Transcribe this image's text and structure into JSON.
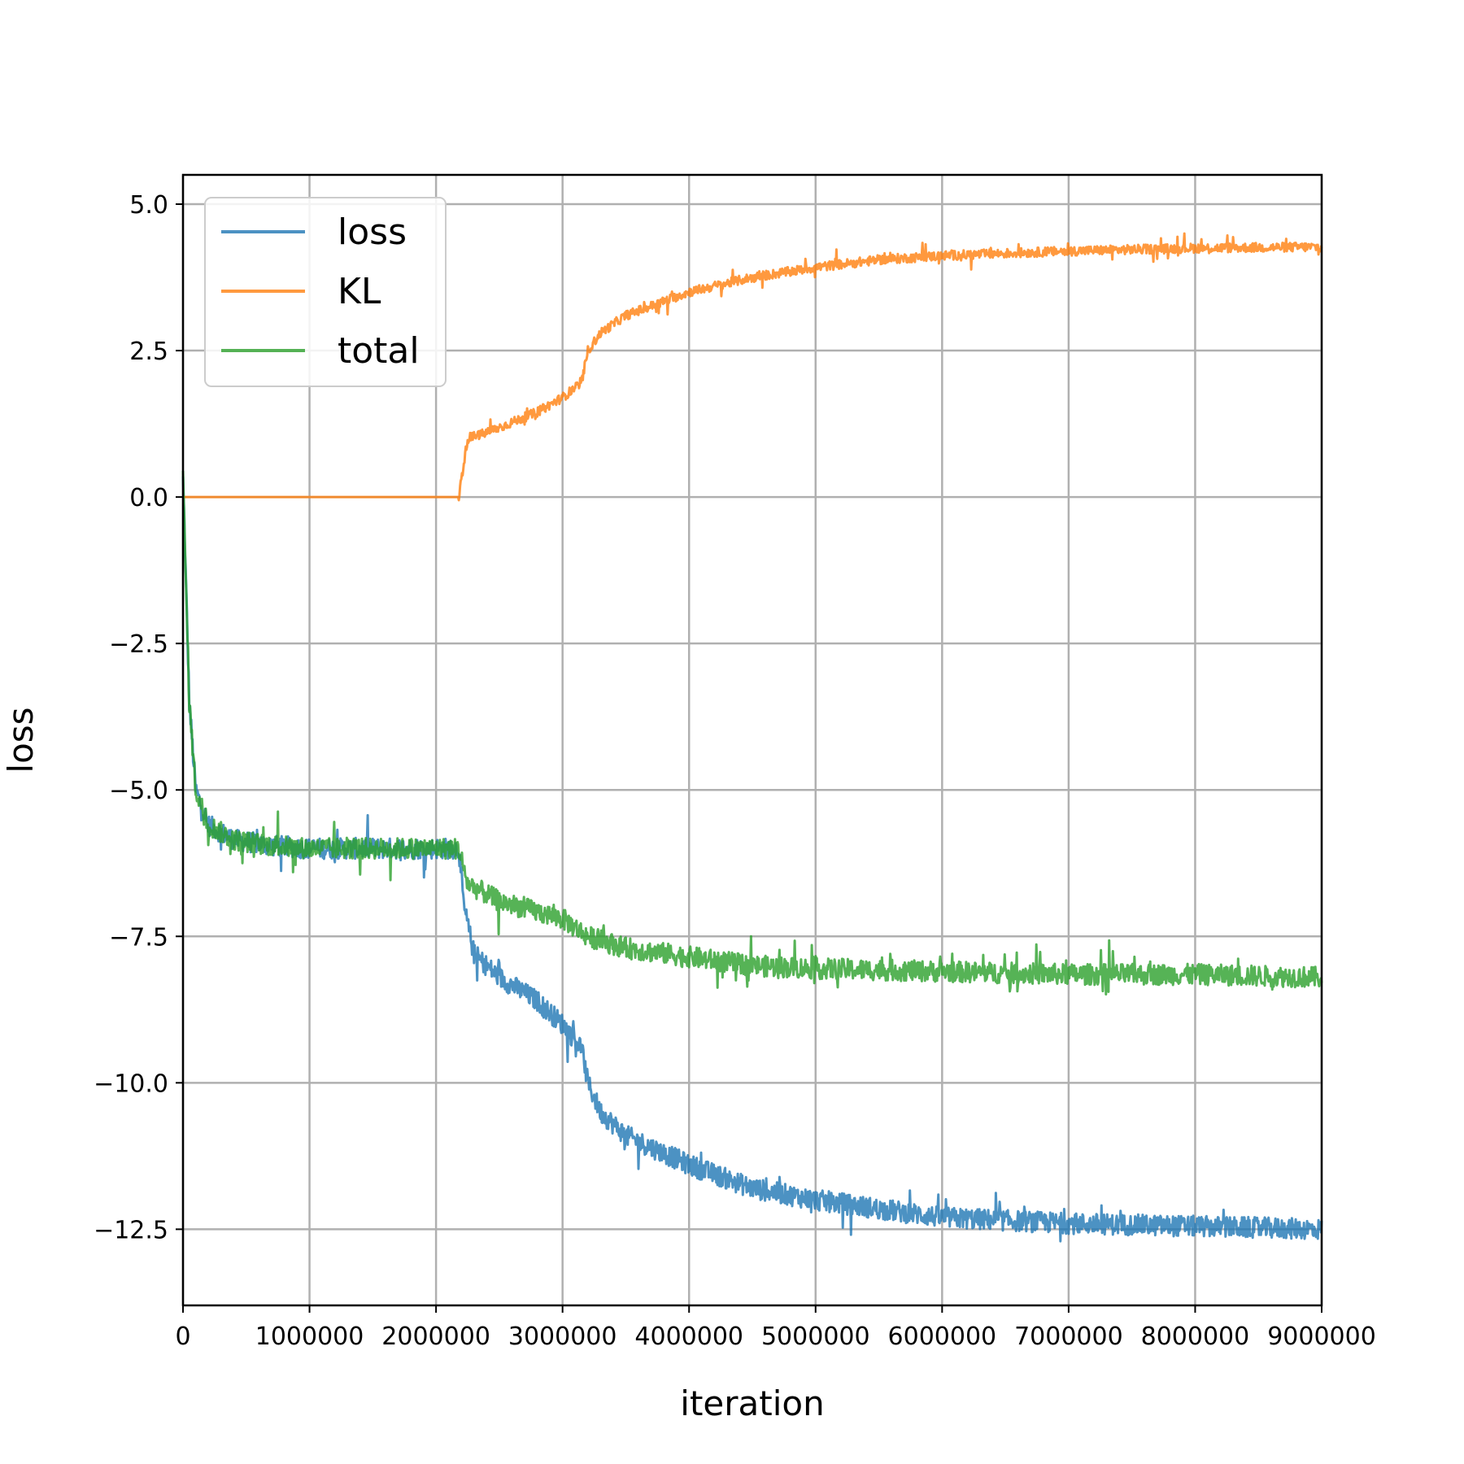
{
  "chart_data": {
    "type": "line",
    "title": "",
    "xlabel": "iteration",
    "ylabel": "loss",
    "xlim": [
      0,
      9000000
    ],
    "ylim": [
      -13.8,
      5.5
    ],
    "grid": true,
    "legend_position": "top-left",
    "x_ticks": [
      0,
      1000000,
      2000000,
      3000000,
      4000000,
      5000000,
      6000000,
      7000000,
      8000000,
      9000000
    ],
    "x_tick_labels": [
      "0",
      "1000000",
      "2000000",
      "3000000",
      "4000000",
      "5000000",
      "6000000",
      "7000000",
      "8000000",
      "9000000"
    ],
    "y_ticks": [
      5.0,
      2.5,
      0.0,
      -2.5,
      -5.0,
      -7.5,
      -10.0,
      -12.5
    ],
    "y_tick_labels": [
      "5.0",
      "2.5",
      "0.0",
      "−2.5",
      "−5.0",
      "−7.5",
      "−10.0",
      "−12.5"
    ],
    "series": [
      {
        "name": "loss",
        "color": "#1f77b4",
        "x": [
          0,
          50000,
          100000,
          200000,
          400000,
          700000,
          1000000,
          1500000,
          2000000,
          2180000,
          2220000,
          2300000,
          2500000,
          2800000,
          3000000,
          3150000,
          3200000,
          3300000,
          3500000,
          4000000,
          4500000,
          5000000,
          5500000,
          6000000,
          7000000,
          8000000,
          9000000
        ],
        "y": [
          0.3,
          -3.5,
          -5.0,
          -5.6,
          -5.85,
          -5.95,
          -6.0,
          -6.0,
          -6.0,
          -6.0,
          -7.0,
          -7.8,
          -8.2,
          -8.6,
          -9.0,
          -9.4,
          -10.0,
          -10.5,
          -10.9,
          -11.4,
          -11.8,
          -12.0,
          -12.15,
          -12.3,
          -12.4,
          -12.45,
          -12.5
        ],
        "noise": 0.18
      },
      {
        "name": "KL",
        "color": "#ff7f0e",
        "x": [
          0,
          2180000,
          2200000,
          2250000,
          2400000,
          2800000,
          3000000,
          3150000,
          3200000,
          3300000,
          3500000,
          4000000,
          4500000,
          5000000,
          5500000,
          6000000,
          7000000,
          8000000,
          9000000
        ],
        "y": [
          0.0,
          0.0,
          0.3,
          1.0,
          1.1,
          1.45,
          1.7,
          1.95,
          2.5,
          2.8,
          3.1,
          3.5,
          3.75,
          3.92,
          4.05,
          4.12,
          4.2,
          4.25,
          4.27
        ],
        "noise": 0.08
      },
      {
        "name": "total",
        "color": "#2ca02c",
        "x": [
          0,
          50000,
          100000,
          200000,
          400000,
          700000,
          1000000,
          1500000,
          2000000,
          2180000,
          2250000,
          2500000,
          3000000,
          3200000,
          3500000,
          4000000,
          4500000,
          5000000,
          6000000,
          7000000,
          8000000,
          9000000
        ],
        "y": [
          0.3,
          -3.5,
          -5.0,
          -5.6,
          -5.85,
          -5.95,
          -6.0,
          -6.0,
          -6.0,
          -6.0,
          -6.6,
          -6.9,
          -7.2,
          -7.5,
          -7.7,
          -7.85,
          -8.0,
          -8.05,
          -8.1,
          -8.15,
          -8.15,
          -8.2
        ],
        "noise": 0.18
      }
    ]
  }
}
